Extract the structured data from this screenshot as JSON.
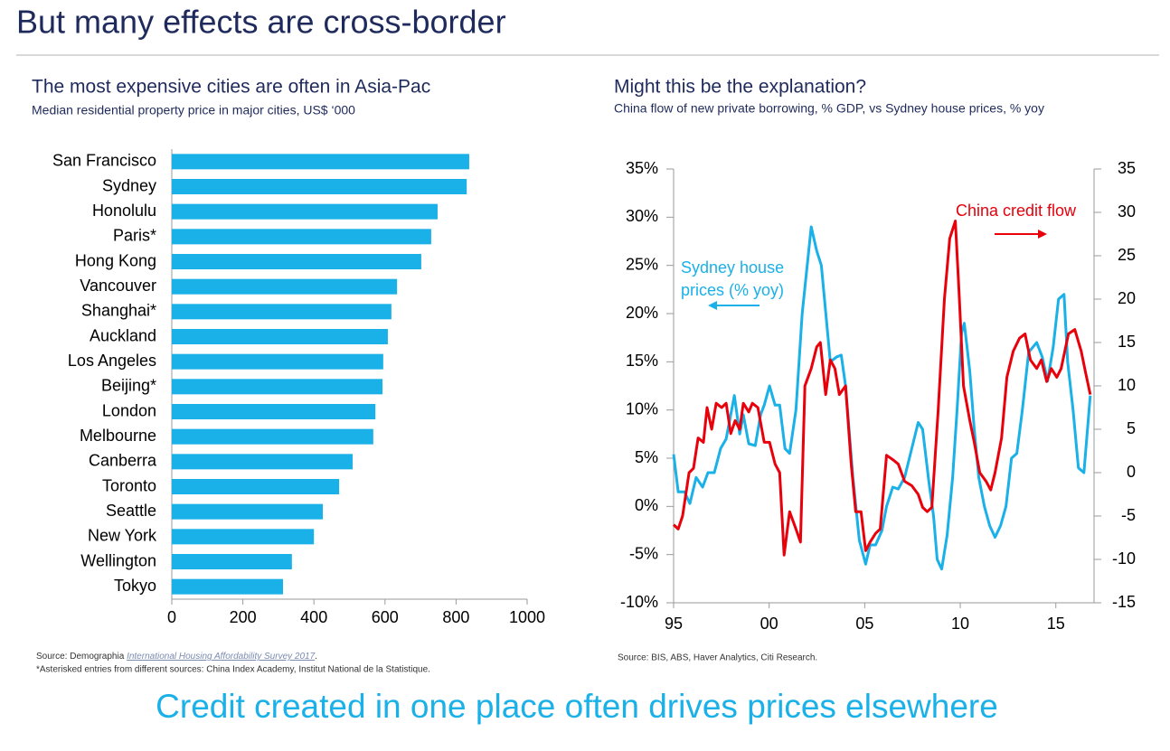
{
  "header": {
    "title": "But many effects are cross-border"
  },
  "chart_data": [
    {
      "type": "bar",
      "orientation": "horizontal",
      "title": "The most expensive cities are often in Asia-Pac",
      "subtitle": "Median residential property price in major cities, US$ ‘000",
      "categories": [
        "San Francisco",
        "Sydney",
        "Honolulu",
        "Paris*",
        "Hong Kong",
        "Vancouver",
        "Shanghai*",
        "Auckland",
        "Los Angeles",
        "Beijing*",
        "London",
        "Melbourne",
        "Canberra",
        "Toronto",
        "Seattle",
        "New York",
        "Wellington",
        "Tokyo"
      ],
      "values": [
        837,
        830,
        748,
        730,
        702,
        634,
        618,
        608,
        595,
        593,
        573,
        567,
        509,
        471,
        425,
        400,
        338,
        313
      ],
      "color": "#1ab0e8",
      "xlim": [
        0,
        1000
      ],
      "xticks": [
        0,
        200,
        400,
        600,
        800,
        1000
      ],
      "source": {
        "prefix": "Source: Demographia",
        "link": "International Housing Affordability Survey 2017",
        "suffix": "."
      },
      "note": "*Asterisked entries from different sources: China Index Academy, Institut National de la Statistique."
    },
    {
      "type": "line",
      "title": "Might this be the explanation?",
      "subtitle": "China flow of new private borrowing, % GDP, vs Sydney house prices, % yoy",
      "xlim": [
        1995,
        2017
      ],
      "xticks": [
        {
          "value": 1995,
          "label": "95"
        },
        {
          "value": 2000,
          "label": "00"
        },
        {
          "value": 2005,
          "label": "05"
        },
        {
          "value": 2010,
          "label": "10"
        },
        {
          "value": 2015,
          "label": "15"
        }
      ],
      "ylim": [
        -10,
        35
      ],
      "yticks": [
        {
          "value": 35,
          "label": "35%"
        },
        {
          "value": 30,
          "label": "30%"
        },
        {
          "value": 25,
          "label": "25%"
        },
        {
          "value": 20,
          "label": "20%"
        },
        {
          "value": 15,
          "label": "15%"
        },
        {
          "value": 10,
          "label": "10%"
        },
        {
          "value": 5,
          "label": "5%"
        },
        {
          "value": 0,
          "label": "0%"
        },
        {
          "value": -5,
          "label": "-5%"
        },
        {
          "value": -10,
          "label": "-10%"
        }
      ],
      "y2lim": [
        -15,
        35
      ],
      "y2ticks": [
        35,
        30,
        25,
        20,
        15,
        10,
        5,
        0,
        -5,
        -10,
        -15
      ],
      "series": [
        {
          "name": [
            "Sydney house",
            "prices (% yoy)"
          ],
          "color": "#1ab0e8",
          "axis": "y",
          "x": [
            1995.0,
            1995.24,
            1995.57,
            1995.85,
            1996.18,
            1996.52,
            1996.8,
            1997.13,
            1997.46,
            1997.75,
            1998.18,
            1998.46,
            1998.65,
            1998.93,
            1999.27,
            1999.55,
            1999.74,
            2000.02,
            2000.31,
            2000.55,
            2000.83,
            2001.07,
            2001.4,
            2001.73,
            2002.2,
            2002.49,
            2002.73,
            2003.2,
            2003.53,
            2003.77,
            2004.0,
            2004.38,
            2004.72,
            2005.05,
            2005.28,
            2005.57,
            2005.9,
            2006.14,
            2006.47,
            2006.75,
            2007.09,
            2007.46,
            2007.8,
            2008.03,
            2008.36,
            2008.6,
            2008.79,
            2009.03,
            2009.31,
            2009.6,
            2009.83,
            2010.07,
            2010.21,
            2010.5,
            2010.73,
            2010.97,
            2011.26,
            2011.54,
            2011.82,
            2012.11,
            2012.39,
            2012.68,
            2012.96,
            2013.25,
            2013.58,
            2014.0,
            2014.29,
            2014.57,
            2014.86,
            2015.14,
            2015.43,
            2015.62,
            2015.9,
            2016.18,
            2016.47,
            2016.8
          ],
          "values": [
            5.4,
            1.5,
            1.5,
            0.3,
            3,
            2,
            3.5,
            3.5,
            6,
            7,
            11.5,
            7.5,
            9.5,
            6.5,
            6.3,
            9.5,
            10.5,
            12.5,
            10.5,
            10.5,
            6,
            5.5,
            10,
            20,
            29,
            26.5,
            25,
            15,
            15.5,
            15.7,
            12.5,
            3,
            -3.5,
            -6,
            -4,
            -4,
            -2.5,
            0,
            2,
            1.8,
            3,
            6,
            8.7,
            8,
            2.5,
            -1,
            -5.5,
            -6.5,
            -3,
            3,
            10,
            18,
            19,
            14,
            8,
            3,
            0,
            -2,
            -3.2,
            -2,
            0,
            5,
            5.5,
            10,
            16,
            17,
            15.5,
            13,
            16.5,
            21.5,
            22,
            15,
            10,
            4,
            3.5,
            11.5
          ]
        },
        {
          "name": "China credit flow",
          "color": "#e8000b",
          "axis": "y2",
          "x": [
            1995.0,
            1995.24,
            1995.47,
            1995.81,
            1996.04,
            1996.28,
            1996.56,
            1996.75,
            1996.99,
            1997.23,
            1997.51,
            1997.75,
            1997.99,
            1998.22,
            1998.46,
            1998.65,
            1998.93,
            1999.12,
            1999.41,
            1999.74,
            2000.02,
            2000.31,
            2000.55,
            2000.78,
            2001.07,
            2001.4,
            2001.64,
            2001.87,
            2002.2,
            2002.49,
            2002.68,
            2002.96,
            2003.2,
            2003.44,
            2003.67,
            2004.0,
            2004.29,
            2004.53,
            2004.81,
            2005.05,
            2005.28,
            2005.57,
            2005.81,
            2006.14,
            2006.47,
            2006.75,
            2007.09,
            2007.46,
            2007.8,
            2008.03,
            2008.27,
            2008.51,
            2008.84,
            2009.17,
            2009.45,
            2009.74,
            2009.93,
            2010.17,
            2010.5,
            2010.73,
            2011.02,
            2011.35,
            2011.59,
            2011.82,
            2012.16,
            2012.44,
            2012.77,
            2013.1,
            2013.39,
            2013.67,
            2014.0,
            2014.24,
            2014.52,
            2014.76,
            2015.05,
            2015.28,
            2015.66,
            2015.99,
            2016.33,
            2016.56,
            2016.8
          ],
          "values": [
            -6,
            -6.5,
            -5,
            0,
            0.5,
            4,
            3.5,
            7.5,
            5,
            8,
            7.5,
            8,
            4.5,
            6,
            5,
            8,
            7,
            8,
            7.5,
            3.5,
            3.5,
            1,
            0,
            -9.5,
            -4.5,
            -6.5,
            -8,
            10,
            12,
            14.5,
            15,
            9,
            13,
            12,
            9,
            10,
            1,
            -4.5,
            -4.5,
            -9,
            -8,
            -7,
            -6.5,
            2,
            1.5,
            1,
            -1,
            -1.5,
            -2.5,
            -4,
            -4.5,
            -4,
            7,
            20,
            27,
            29,
            21,
            10,
            6,
            3.5,
            0,
            -1,
            -2,
            0,
            4,
            11,
            14,
            15.5,
            16,
            13,
            12,
            13,
            10.5,
            12,
            11,
            12,
            16,
            16.5,
            14,
            11.5,
            9
          ]
        }
      ],
      "source": "Source: BIS, ABS, Haver Analytics, Citi Research."
    }
  ],
  "footer": "Credit created in one place often drives prices elsewhere"
}
